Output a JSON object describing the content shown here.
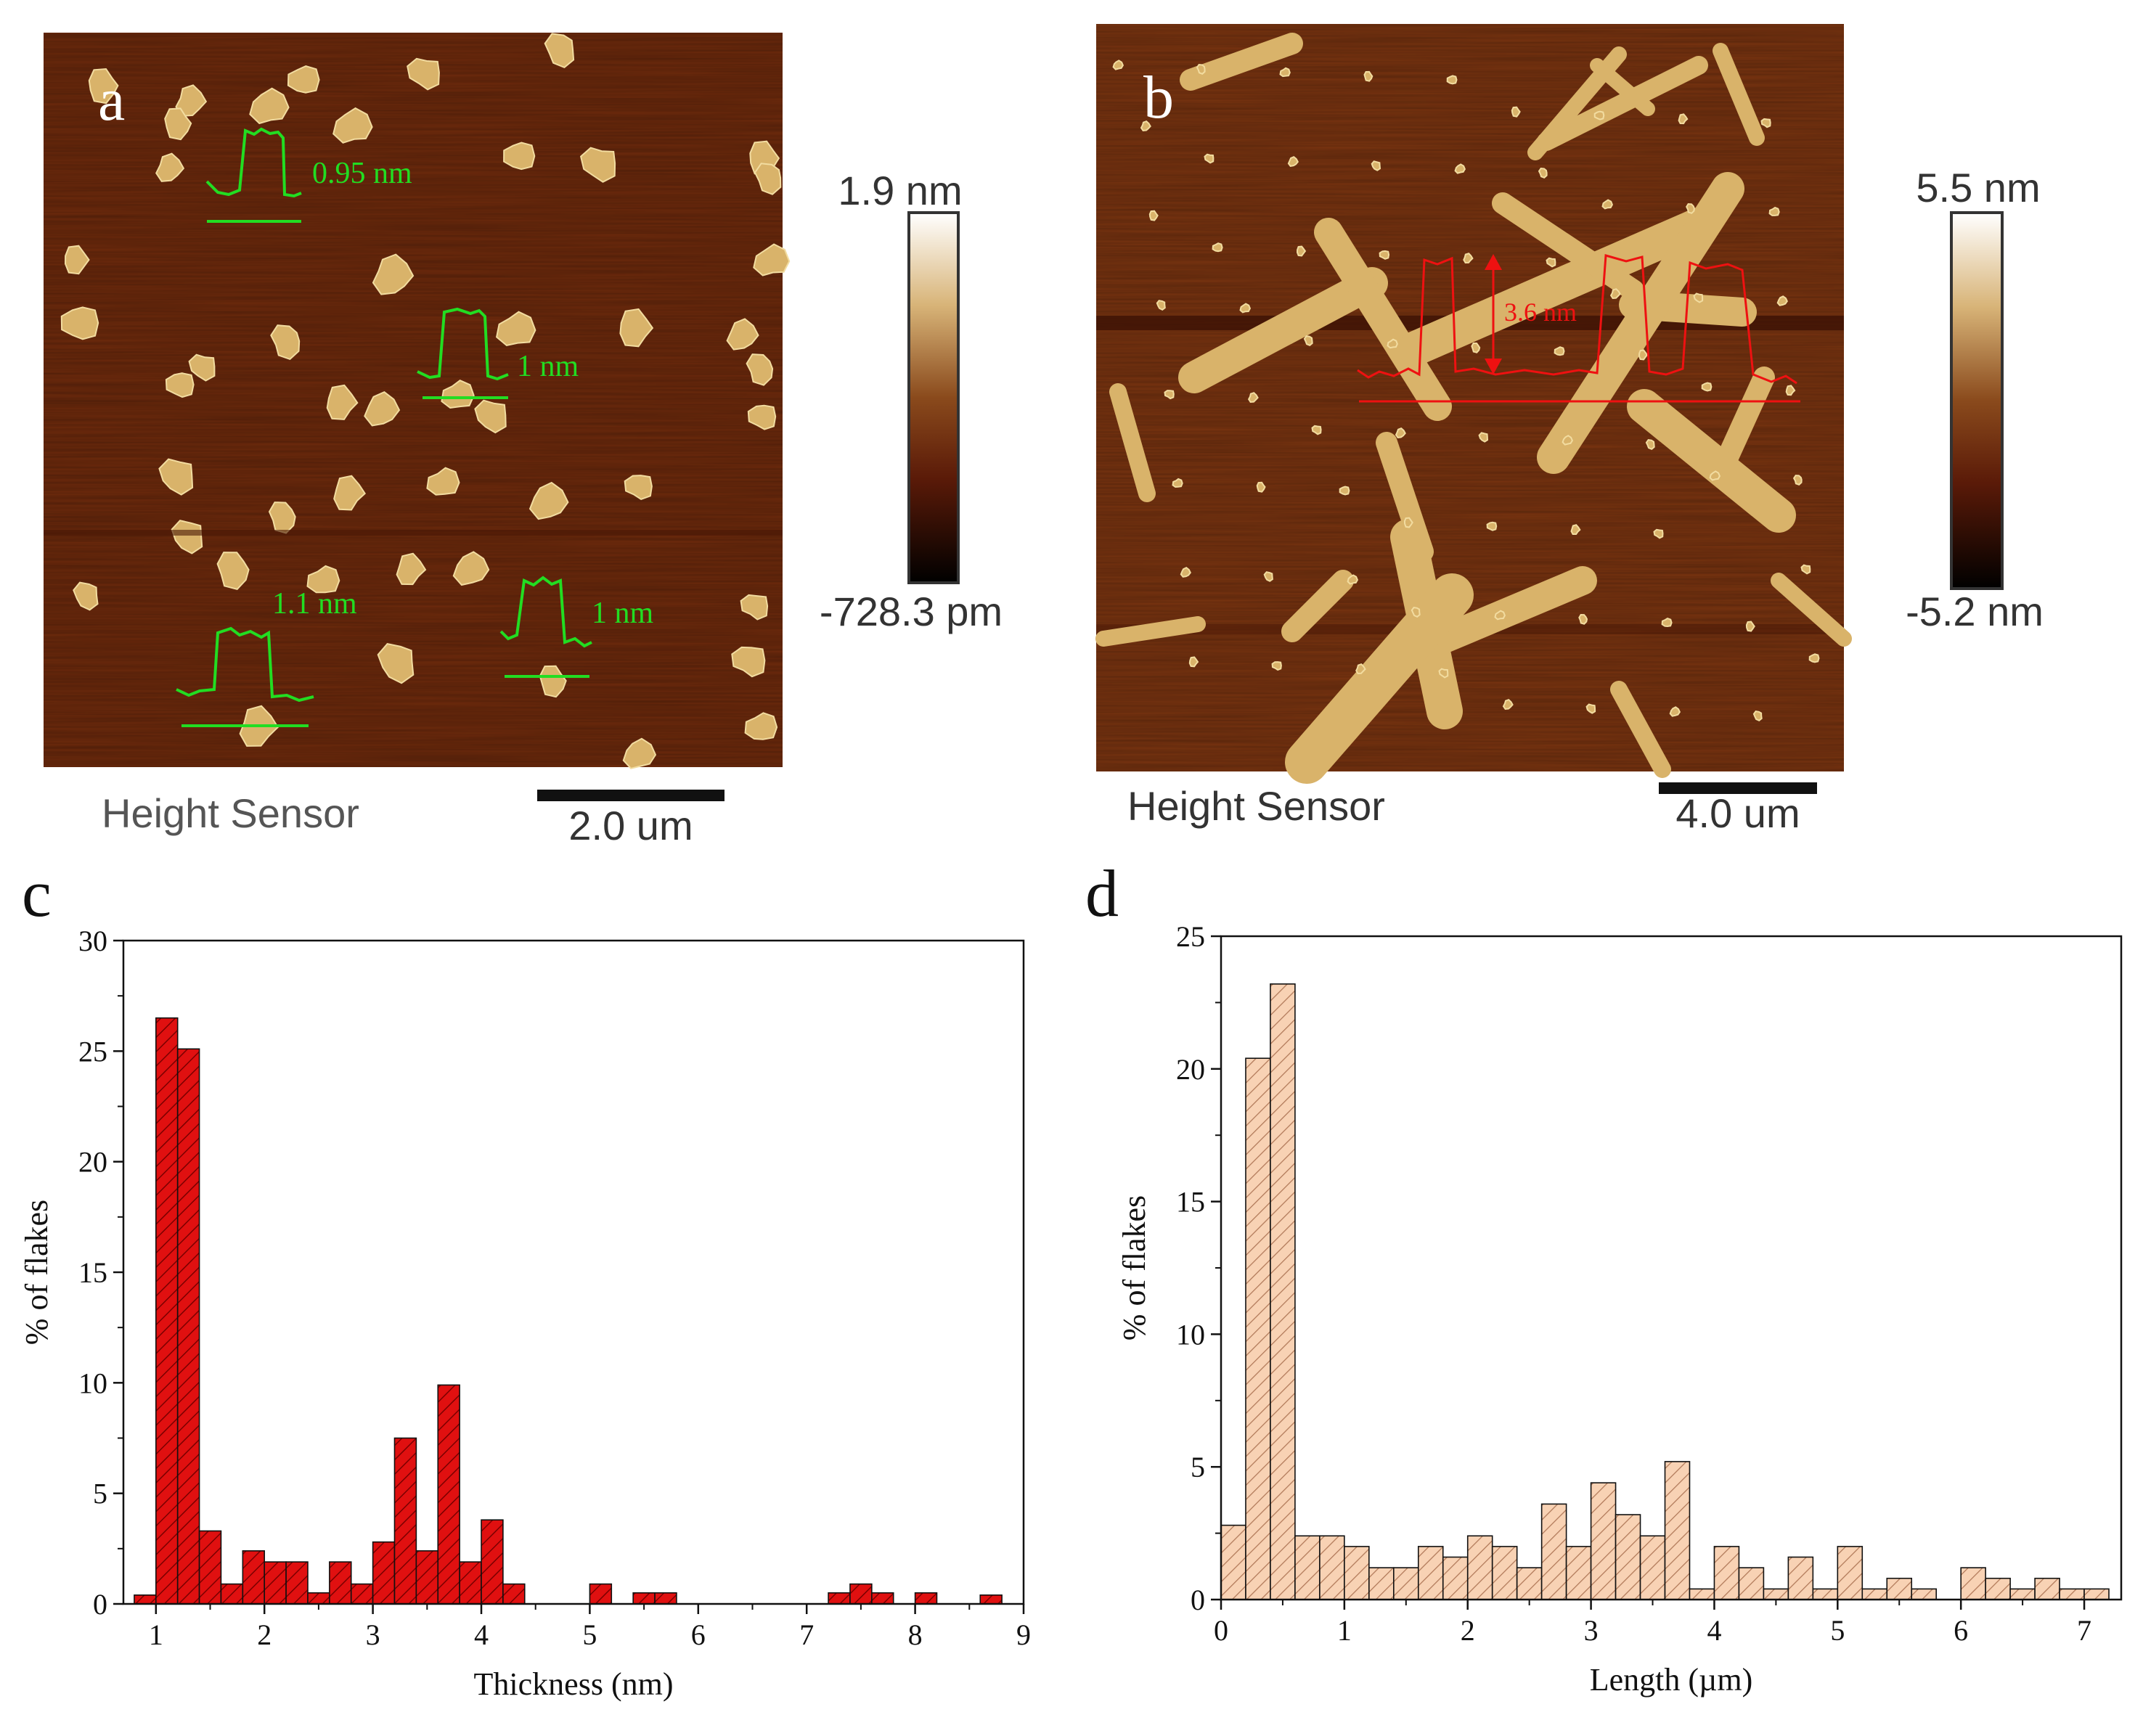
{
  "panels": {
    "a": {
      "letter": "a",
      "caption": "Height Sensor",
      "scale_bar_label": "2.0 um",
      "colorbar_max": "1.9 nm",
      "colorbar_min": "-728.3 pm",
      "profile_labels": [
        "0.95 nm",
        "1 nm",
        "1.1 nm",
        "1 nm"
      ]
    },
    "b": {
      "letter": "b",
      "caption": "Height Sensor",
      "scale_bar_label": "4.0 um",
      "colorbar_max": "5.5 nm",
      "colorbar_min": "-5.2 nm",
      "profile_label": "3.6 nm"
    },
    "c": {
      "letter": "c"
    },
    "d": {
      "letter": "d"
    }
  },
  "colors": {
    "afm_background": "#6e2a0c",
    "afm_flake": "#d9b36a",
    "profile_green": "#22dd22",
    "profile_red": "#ee1111",
    "hist_c_fill": "#e01010",
    "hist_d_fill": "#f8d2b4"
  },
  "chart_data": [
    {
      "type": "bar",
      "panel": "c",
      "xlabel": "Thickness (nm)",
      "ylabel": "% of flakes",
      "xlim": [
        0.7,
        9
      ],
      "ylim": [
        0,
        30
      ],
      "xticks": [
        1,
        2,
        3,
        4,
        5,
        6,
        7,
        8,
        9
      ],
      "yticks": [
        0,
        5,
        10,
        15,
        20,
        25,
        30
      ],
      "bin_width": 0.2,
      "x": [
        0.9,
        1.1,
        1.3,
        1.5,
        1.7,
        1.9,
        2.1,
        2.3,
        2.5,
        2.7,
        2.9,
        3.1,
        3.3,
        3.5,
        3.7,
        3.9,
        4.1,
        4.3,
        5.1,
        5.5,
        5.7,
        7.3,
        7.5,
        7.7,
        8.1,
        8.7
      ],
      "values": [
        0.4,
        26.5,
        25.1,
        3.3,
        0.9,
        2.4,
        1.9,
        1.9,
        0.5,
        1.9,
        0.9,
        2.8,
        7.5,
        2.4,
        9.9,
        1.9,
        3.8,
        0.9,
        0.9,
        0.5,
        0.5,
        0.5,
        0.9,
        0.5,
        0.5,
        0.4
      ]
    },
    {
      "type": "bar",
      "panel": "d",
      "xlabel": "Length (µm)",
      "ylabel": "% of flakes",
      "xlim": [
        0,
        7.3
      ],
      "ylim": [
        0,
        25
      ],
      "xticks": [
        0,
        1,
        2,
        3,
        4,
        5,
        6,
        7
      ],
      "yticks": [
        0,
        5,
        10,
        15,
        20,
        25
      ],
      "bin_width": 0.2,
      "x": [
        0.1,
        0.3,
        0.5,
        0.7,
        0.9,
        1.1,
        1.3,
        1.5,
        1.7,
        1.9,
        2.1,
        2.3,
        2.5,
        2.7,
        2.9,
        3.1,
        3.3,
        3.5,
        3.7,
        3.9,
        4.1,
        4.3,
        4.5,
        4.7,
        4.9,
        5.1,
        5.3,
        5.5,
        5.7,
        5.9,
        6.1,
        6.3,
        6.5,
        6.7,
        6.9,
        7.1
      ],
      "values": [
        2.8,
        20.4,
        23.2,
        2.4,
        2.4,
        2.0,
        1.2,
        1.2,
        2.0,
        1.6,
        2.4,
        2.0,
        1.2,
        3.6,
        2.0,
        4.4,
        3.2,
        2.4,
        5.2,
        0.4,
        2.0,
        1.2,
        0.4,
        1.6,
        0.4,
        2.0,
        0.4,
        0.8,
        0.4,
        0.0,
        1.2,
        0.8,
        0.4,
        0.8,
        0.4,
        0.4
      ]
    }
  ]
}
